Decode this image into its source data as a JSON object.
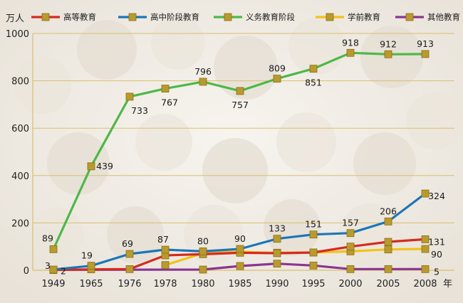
{
  "chart_data": {
    "type": "line",
    "ylabel": "万人",
    "xlabel": "年",
    "ylim": [
      0,
      1000
    ],
    "yticks": [
      0,
      200,
      400,
      600,
      800,
      1000
    ],
    "grid": "horizontal",
    "legend_position": "top",
    "categories": [
      "1949",
      "1965",
      "1976",
      "1978",
      "1980",
      "1985",
      "1990",
      "1995",
      "2000",
      "2005",
      "2008"
    ],
    "series": [
      {
        "name": "高等教育",
        "color": "#d42a1f",
        "values": [
          1,
          4,
          5,
          63,
          68,
          74,
          72,
          75,
          100,
          120,
          131
        ],
        "labels": [
          "",
          "",
          "",
          "",
          "",
          "",
          "",
          "",
          "",
          "",
          "131"
        ]
      },
      {
        "name": "高中阶段教育",
        "color": "#1b76b8",
        "values": [
          3,
          19,
          69,
          87,
          80,
          90,
          133,
          151,
          157,
          206,
          324
        ],
        "labels": [
          "3",
          "19",
          "69",
          "87",
          "80",
          "90",
          "133",
          "151",
          "157",
          "206",
          "324"
        ]
      },
      {
        "name": "义务教育阶段",
        "color": "#4db848",
        "values": [
          89,
          439,
          733,
          767,
          796,
          757,
          809,
          851,
          918,
          912,
          913
        ],
        "labels": [
          "89",
          "439",
          "733",
          "767",
          "796",
          "757",
          "809",
          "851",
          "918",
          "912",
          "913"
        ]
      },
      {
        "name": "学前教育",
        "color": "#f3c21a",
        "values": [
          null,
          null,
          null,
          22,
          72,
          78,
          74,
          75,
          80,
          88,
          90
        ],
        "labels": [
          "",
          "",
          "",
          "",
          "",
          "",
          "",
          "",
          "",
          "",
          "90"
        ]
      },
      {
        "name": "其他教育",
        "color": "#8a3591",
        "values": [
          2,
          null,
          null,
          null,
          3,
          18,
          28,
          20,
          5,
          5,
          5
        ],
        "labels": [
          "2",
          "",
          "",
          "",
          "",
          "",
          "",
          "",
          "",
          "",
          "5"
        ]
      }
    ]
  },
  "colors": {
    "marker": "#b99a2e",
    "marker_border": "#8a6f16",
    "gridline": "#d9bf6e",
    "background_photo_tint": "#ece7df"
  }
}
